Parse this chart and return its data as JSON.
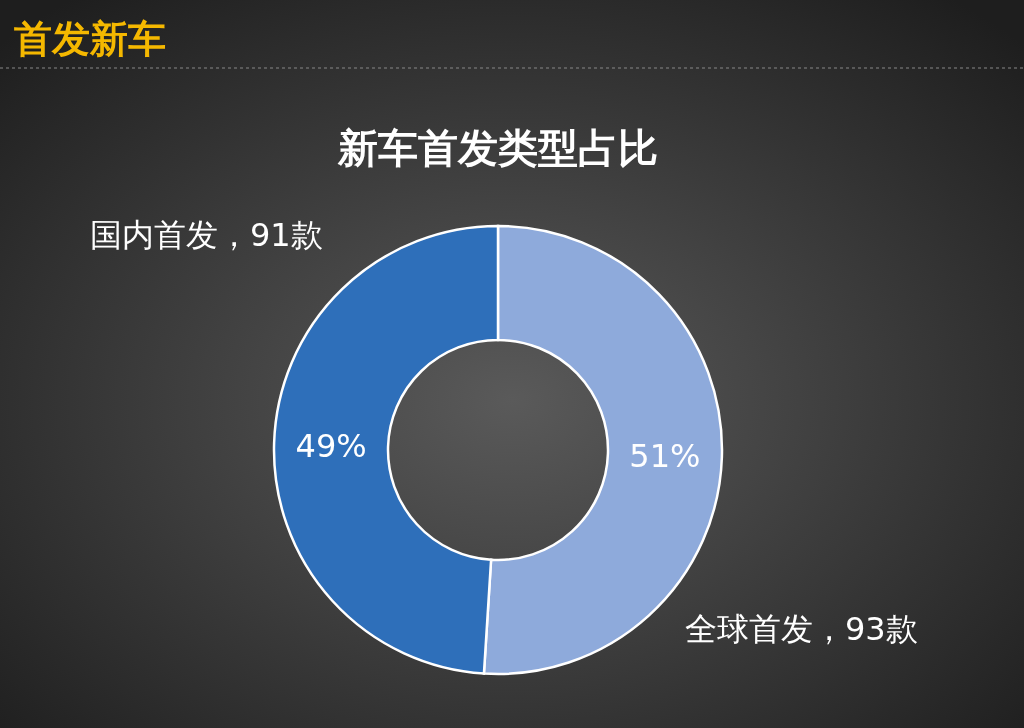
{
  "chart_data": {
    "type": "donut",
    "title": "首发新车",
    "subtitle": "新车首发类型占比",
    "categories": [
      "全球首发，93款",
      "国内首发，91款"
    ],
    "values": [
      51,
      49
    ],
    "colors": [
      "#8eaadb",
      "#2e6fba"
    ],
    "value_labels": [
      "51%",
      "49%"
    ]
  }
}
